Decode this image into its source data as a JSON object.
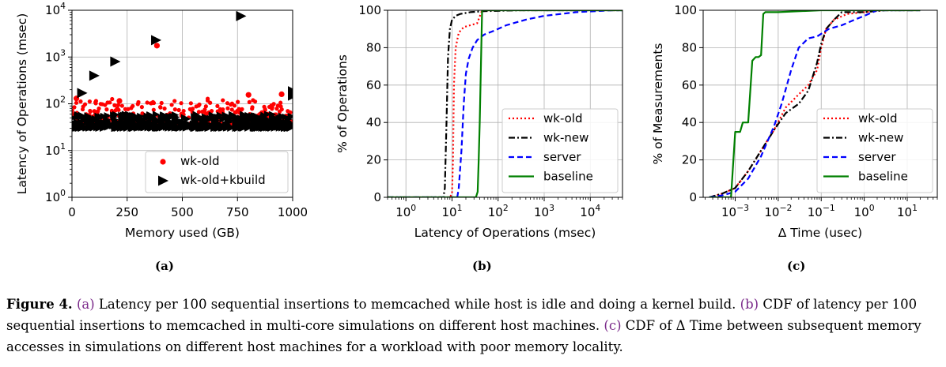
{
  "figure": {
    "subfigure_labels": [
      "(a)",
      "(b)",
      "(c)"
    ],
    "caption_label": "Figure 4.",
    "caption_parts": [
      {
        "text": "(a)",
        "ref": true
      },
      {
        "text": " Latency per 100 sequential insertions to memcached while host is idle and doing a kernel build. ",
        "ref": false
      },
      {
        "text": "(b)",
        "ref": true
      },
      {
        "text": " CDF of latency per 100 sequential insertions to memcached in multi-core simulations on different host machines. ",
        "ref": false
      },
      {
        "text": "(c)",
        "ref": true
      },
      {
        "text": " CDF of Δ Time between subsequent memory accesses in simulations on different host machines for a workload with poor memory locality.",
        "ref": false
      }
    ],
    "ref_color": "#7b2a8a"
  },
  "chart_data": [
    {
      "type": "scatter",
      "xlabel": "Memory used (GB)",
      "ylabel": "Latency of Operations (msec)",
      "xlim": [
        0,
        1000
      ],
      "ylim": [
        1,
        10000
      ],
      "yscale": "log",
      "x_ticks": [
        0,
        250,
        500,
        750,
        1000
      ],
      "x_tick_labels": [
        "0",
        "250",
        "500",
        "750",
        "1000"
      ],
      "y_ticks": [
        1,
        10,
        100,
        1000,
        10000
      ],
      "y_tick_labels": [
        "10^0",
        "10^1",
        "10^2",
        "10^3",
        "10^4"
      ],
      "grid": true,
      "legend": "bottom-right",
      "series": [
        {
          "name": "wk-old",
          "color": "#ff0000",
          "marker": "circle",
          "band": {
            "x": [
              0,
              1000
            ],
            "y": [
              35,
              130
            ]
          },
          "points": [
            [
              385,
              1750
            ],
            [
              20,
              130
            ],
            [
              215,
              115
            ],
            [
              800,
              155
            ],
            [
              950,
              160
            ]
          ]
        },
        {
          "name": "wk-old+kbuild",
          "color": "#000000",
          "marker": "triangle-right",
          "band": {
            "x": [
              0,
              1000
            ],
            "y": [
              30,
              60
            ]
          },
          "points": [
            [
              45,
              170
            ],
            [
              100,
              400
            ],
            [
              195,
              800
            ],
            [
              380,
              2300
            ],
            [
              765,
              7500
            ],
            [
              1000,
              185
            ],
            [
              1000,
              150
            ]
          ]
        }
      ]
    },
    {
      "type": "line",
      "cdf": true,
      "xlabel": "Latency of Operations (msec)",
      "ylabel": "% of Operations",
      "xlim": [
        0.4,
        50000
      ],
      "ylim": [
        0,
        100
      ],
      "xscale": "log",
      "x_ticks": [
        1,
        10,
        100,
        1000,
        10000
      ],
      "x_tick_labels": [
        "10^0",
        "10^1",
        "10^2",
        "10^3",
        "10^4"
      ],
      "y_ticks": [
        0,
        20,
        40,
        60,
        80,
        100
      ],
      "grid": true,
      "legend": "lower-right",
      "series": [
        {
          "name": "wk-old",
          "color": "#ff0000",
          "style": "dotted",
          "x": [
            0.4,
            9,
            10,
            10.5,
            11,
            12,
            14,
            18,
            25,
            35,
            45,
            100,
            1000,
            50000
          ],
          "y": [
            0,
            0,
            2,
            20,
            60,
            80,
            88,
            91,
            92,
            93,
            100,
            100,
            100,
            100
          ]
        },
        {
          "name": "wk-new",
          "color": "#000000",
          "style": "dashdot",
          "x": [
            0.4,
            6.5,
            7,
            7.6,
            8.2,
            9,
            10,
            12,
            15,
            25,
            50,
            300,
            50000
          ],
          "y": [
            0,
            0,
            5,
            40,
            75,
            90,
            95,
            97,
            98,
            99,
            99.5,
            100,
            100
          ]
        },
        {
          "name": "server",
          "color": "#0000ff",
          "style": "dashed",
          "x": [
            0.4,
            13,
            14,
            16,
            18,
            20,
            23,
            28,
            35,
            50,
            80,
            150,
            400,
            1000,
            5000,
            30000,
            50000
          ],
          "y": [
            0,
            0,
            5,
            25,
            50,
            66,
            74,
            80,
            84,
            87,
            89,
            92,
            95,
            97,
            99,
            100,
            100
          ]
        },
        {
          "name": "baseline",
          "color": "#008000",
          "style": "solid",
          "x": [
            0.4,
            33,
            36,
            38,
            40,
            45,
            50,
            100,
            50000
          ],
          "y": [
            0,
            0,
            3,
            20,
            40,
            100,
            100,
            100,
            100
          ]
        }
      ]
    },
    {
      "type": "line",
      "cdf": true,
      "xlabel": "Δ Time (usec)",
      "ylabel": "% of Measurements",
      "xlim": [
        0.00018,
        50
      ],
      "ylim": [
        0,
        100
      ],
      "xscale": "log",
      "x_ticks": [
        0.001,
        0.01,
        0.1,
        1,
        10
      ],
      "x_tick_labels": [
        "10^-3",
        "10^-2",
        "10^-1",
        "10^0",
        "10^1"
      ],
      "y_ticks": [
        0,
        20,
        40,
        60,
        80,
        100
      ],
      "grid": true,
      "legend": "lower-right",
      "series": [
        {
          "name": "wk-old",
          "color": "#ff0000",
          "style": "dotted",
          "x": [
            0.00025,
            0.0005,
            0.001,
            0.002,
            0.004,
            0.008,
            0.015,
            0.03,
            0.05,
            0.08,
            0.1,
            0.13,
            0.2,
            0.4,
            1,
            3,
            20
          ],
          "y": [
            0,
            2,
            5,
            14,
            25,
            36,
            48,
            55,
            60,
            68,
            80,
            90,
            95,
            98,
            99,
            100,
            100
          ]
        },
        {
          "name": "wk-new",
          "color": "#000000",
          "style": "dashdot",
          "x": [
            0.00025,
            0.0005,
            0.001,
            0.002,
            0.004,
            0.008,
            0.015,
            0.03,
            0.05,
            0.08,
            0.1,
            0.13,
            0.2,
            0.3,
            1,
            3,
            20
          ],
          "y": [
            0,
            2,
            5,
            14,
            25,
            36,
            45,
            50,
            57,
            72,
            82,
            90,
            95,
            99,
            99,
            100,
            100
          ]
        },
        {
          "name": "server",
          "color": "#0000ff",
          "style": "dashed",
          "x": [
            0.00025,
            0.0005,
            0.001,
            0.002,
            0.004,
            0.008,
            0.012,
            0.02,
            0.03,
            0.05,
            0.08,
            0.15,
            0.3,
            0.6,
            1,
            2,
            20
          ],
          "y": [
            0,
            1,
            3,
            10,
            22,
            38,
            50,
            68,
            80,
            85,
            86,
            90,
            92,
            95,
            97,
            100,
            100
          ]
        },
        {
          "name": "baseline",
          "color": "#008000",
          "style": "solid",
          "x": [
            0.00025,
            0.0008,
            0.001,
            0.0013,
            0.0015,
            0.002,
            0.0025,
            0.003,
            0.0035,
            0.004,
            0.0045,
            0.005,
            0.01,
            0.1,
            20
          ],
          "y": [
            0,
            0,
            35,
            35,
            40,
            40,
            73,
            75,
            75,
            76,
            98,
            99,
            99,
            100,
            100
          ]
        }
      ]
    }
  ]
}
